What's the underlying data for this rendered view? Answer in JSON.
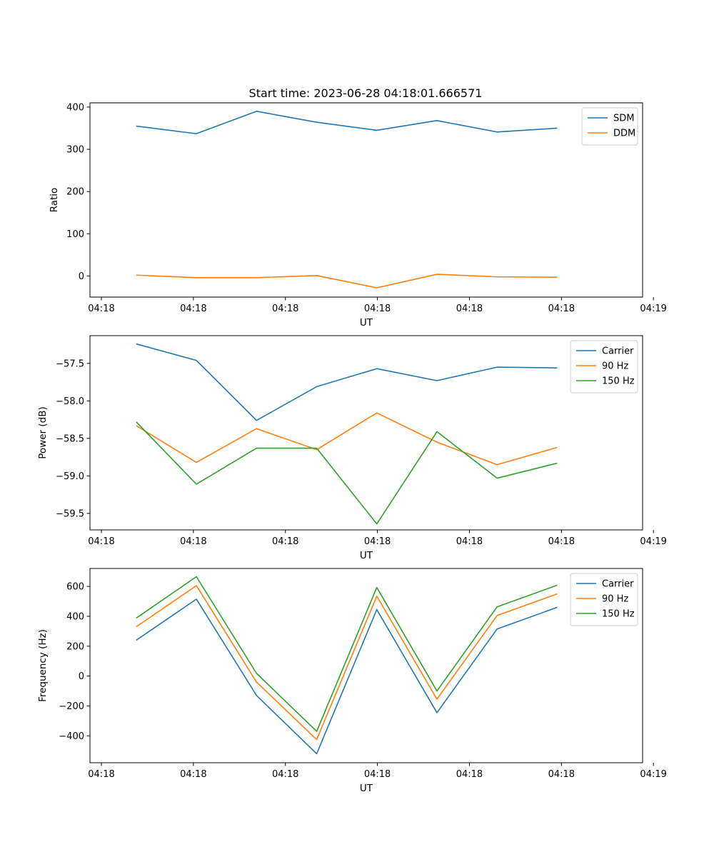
{
  "figure": {
    "title": "Start time: 2023-06-28 04:18:01.666571"
  },
  "colors": {
    "blue": "#1f77b4",
    "orange": "#ff7f0e",
    "green": "#2ca02c"
  },
  "chart_data": [
    {
      "type": "line",
      "title": "Start time: 2023-06-28 04:18:01.666571",
      "xlabel": "UT",
      "ylabel": "Ratio",
      "x": [
        1,
        2,
        3,
        4,
        5,
        6,
        7,
        8
      ],
      "xlim": [
        0.23,
        9.42
      ],
      "ylim": [
        -50,
        410
      ],
      "xticks": [
        0.42,
        1.95,
        3.48,
        5.01,
        6.54,
        8.07,
        9.6
      ],
      "xticklabels": [
        "04:18",
        "04:18",
        "04:18",
        "04:18",
        "04:18",
        "04:18",
        "04:19"
      ],
      "yticks": [
        0,
        100,
        200,
        300,
        400
      ],
      "yticklabels": [
        "0",
        "100",
        "200",
        "300",
        "400"
      ],
      "legend": "top-right",
      "series": [
        {
          "name": "SDM",
          "color": "blue",
          "values": [
            355,
            337,
            390,
            364,
            345,
            368,
            341,
            350
          ]
        },
        {
          "name": "DDM",
          "color": "orange",
          "values": [
            2,
            -4,
            -4,
            1,
            -28,
            4,
            -2,
            -3
          ]
        }
      ]
    },
    {
      "type": "line",
      "xlabel": "UT",
      "ylabel": "Power (dB)",
      "x": [
        1,
        2,
        3,
        4,
        5,
        6,
        7,
        8
      ],
      "xlim": [
        0.23,
        9.42
      ],
      "ylim": [
        -59.72,
        -57.13
      ],
      "xticks": [
        0.42,
        1.95,
        3.48,
        5.01,
        6.54,
        8.07,
        9.6
      ],
      "xticklabels": [
        "04:18",
        "04:18",
        "04:18",
        "04:18",
        "04:18",
        "04:18",
        "04:19"
      ],
      "yticks": [
        -59.5,
        -59.0,
        -58.5,
        -58.0,
        -57.5
      ],
      "yticklabels": [
        "−59.5",
        "−59.0",
        "−58.5",
        "−58.0",
        "−57.5"
      ],
      "legend": "top-right",
      "series": [
        {
          "name": "Carrier",
          "color": "blue",
          "values": [
            -57.24,
            -57.46,
            -58.26,
            -57.81,
            -57.57,
            -57.73,
            -57.55,
            -57.56
          ]
        },
        {
          "name": "90 Hz",
          "color": "orange",
          "values": [
            -58.33,
            -58.82,
            -58.37,
            -58.65,
            -58.16,
            -58.55,
            -58.85,
            -58.62
          ]
        },
        {
          "name": "150 Hz",
          "color": "green",
          "values": [
            -58.28,
            -59.11,
            -58.63,
            -58.63,
            -59.64,
            -58.41,
            -59.03,
            -58.83
          ]
        }
      ]
    },
    {
      "type": "line",
      "xlabel": "UT",
      "ylabel": "Frequency (Hz)",
      "x": [
        1,
        2,
        3,
        4,
        5,
        6,
        7,
        8
      ],
      "xlim": [
        0.23,
        9.42
      ],
      "ylim": [
        -580,
        720
      ],
      "xticks": [
        0.42,
        1.95,
        3.48,
        5.01,
        6.54,
        8.07,
        9.6
      ],
      "xticklabels": [
        "04:18",
        "04:18",
        "04:18",
        "04:18",
        "04:18",
        "04:18",
        "04:19"
      ],
      "yticks": [
        -400,
        -200,
        0,
        200,
        400,
        600
      ],
      "yticklabels": [
        "−400",
        "−200",
        "0",
        "200",
        "400",
        "600"
      ],
      "legend": "top-right",
      "series": [
        {
          "name": "Carrier",
          "color": "blue",
          "values": [
            240,
            515,
            -130,
            -520,
            445,
            -245,
            315,
            460
          ]
        },
        {
          "name": "90 Hz",
          "color": "orange",
          "values": [
            330,
            605,
            -40,
            -425,
            535,
            -155,
            405,
            550
          ]
        },
        {
          "name": "150 Hz",
          "color": "green",
          "values": [
            388,
            665,
            18,
            -370,
            593,
            -100,
            463,
            608
          ]
        }
      ]
    }
  ]
}
